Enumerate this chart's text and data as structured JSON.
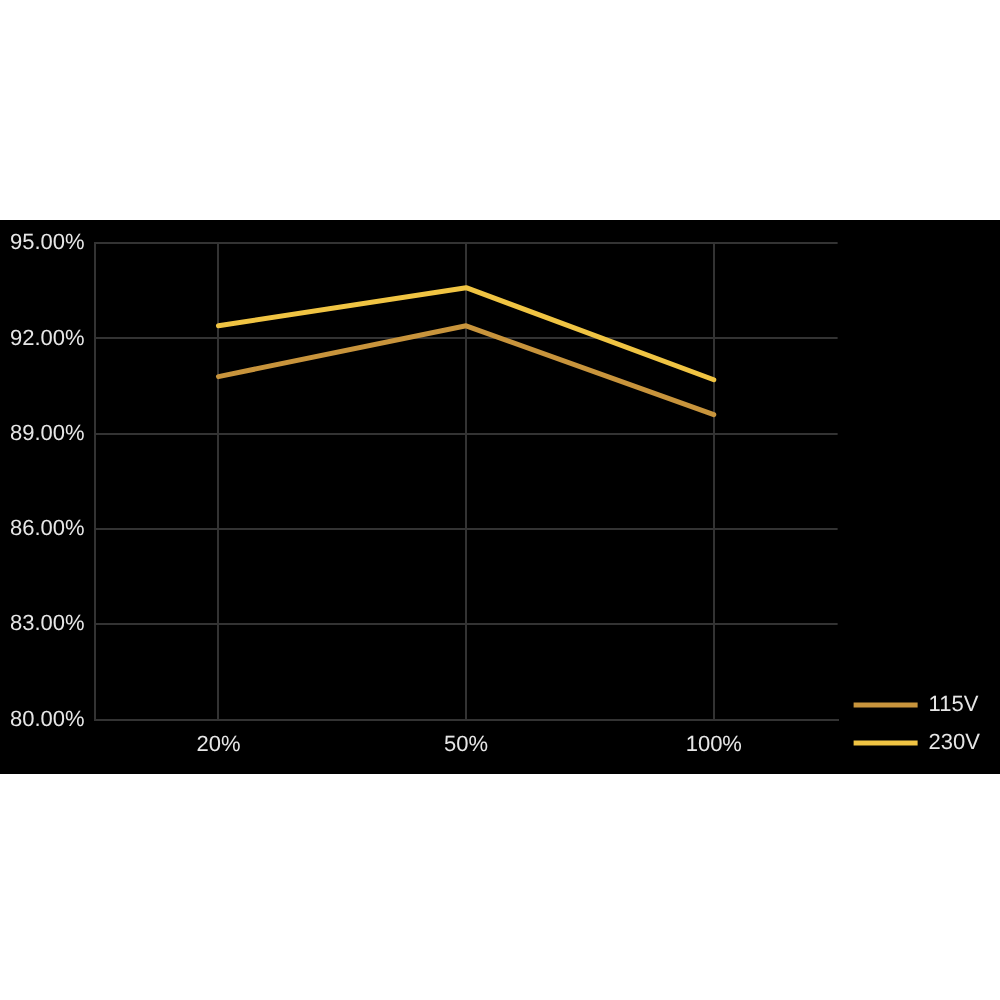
{
  "chart_data": {
    "type": "line",
    "categories": [
      "20%",
      "50%",
      "100%"
    ],
    "series": [
      {
        "name": "115V",
        "color": "#c8943c",
        "values": [
          90.8,
          92.4,
          89.6
        ]
      },
      {
        "name": "230V",
        "color": "#f0c443",
        "values": [
          92.4,
          93.6,
          90.7
        ]
      }
    ],
    "ylim": [
      80,
      95
    ],
    "yticks": [
      {
        "value": 80,
        "label": "80.00%"
      },
      {
        "value": 83,
        "label": "83.00%"
      },
      {
        "value": 86,
        "label": "86.00%"
      },
      {
        "value": 89,
        "label": "89.00%"
      },
      {
        "value": 92,
        "label": "92.00%"
      },
      {
        "value": 95,
        "label": "95.00%"
      }
    ],
    "grid": true,
    "legend": "bottom right",
    "marker": "none",
    "line_style": "solid"
  }
}
